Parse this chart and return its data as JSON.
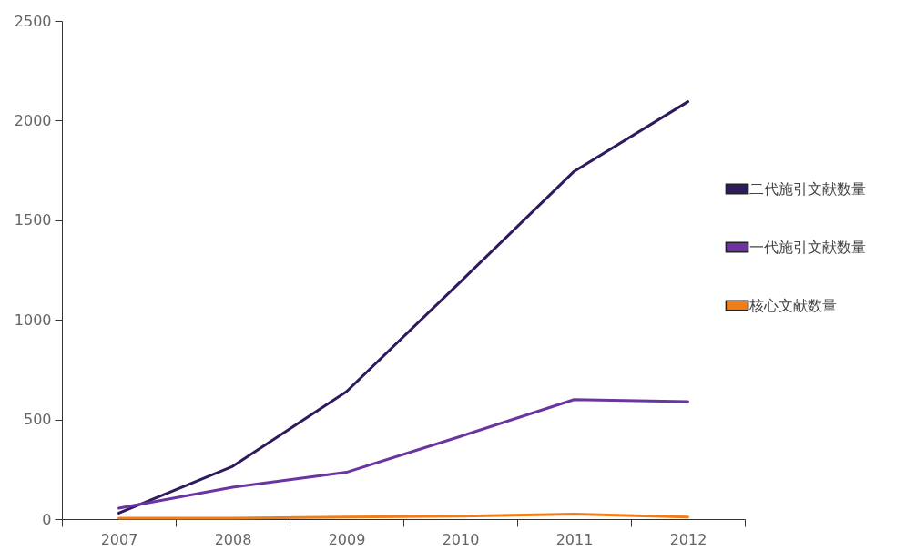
{
  "chart_data": {
    "type": "line",
    "categories": [
      "2007",
      "2008",
      "2009",
      "2010",
      "2011",
      "2012"
    ],
    "series": [
      {
        "name": "二代施引文献数量",
        "color": "#2e1a5c",
        "values": [
          30,
          265,
          640,
          1190,
          1745,
          2095
        ]
      },
      {
        "name": "一代施引文献数量",
        "color": "#6a35a0",
        "values": [
          55,
          160,
          235,
          415,
          600,
          590
        ]
      },
      {
        "name": "核心文献数量",
        "color": "#f07d1a",
        "values": [
          5,
          5,
          10,
          15,
          25,
          10
        ]
      }
    ],
    "ylim": [
      0,
      2500
    ],
    "yticks": [
      0,
      500,
      1000,
      1500,
      2000,
      2500
    ],
    "legend": "right",
    "grid": false,
    "marker": "none"
  }
}
